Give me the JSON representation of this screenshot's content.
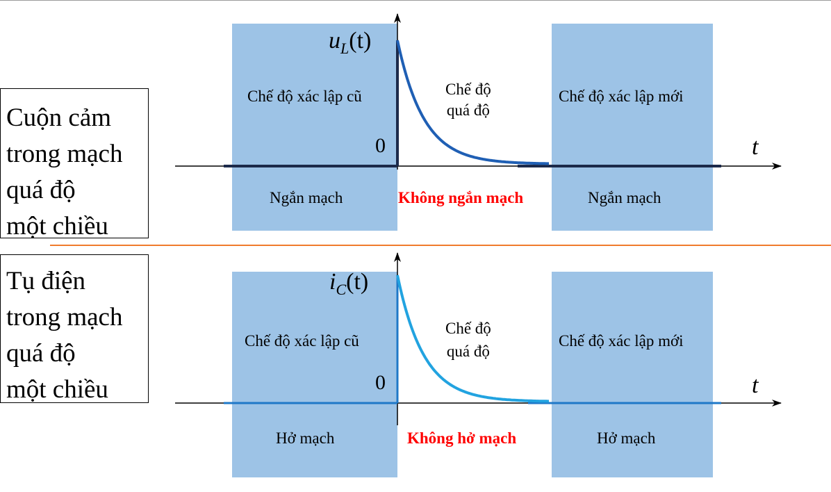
{
  "panels": [
    {
      "side_label": "Cuộn cảm\ntrong mạch\nquá độ\nmột chiều",
      "signal_label": {
        "base": "u",
        "sub": "L",
        "arg": "(t)"
      },
      "old_state": "Chế độ xác lập cũ",
      "transient": "Chế độ\nquá độ",
      "new_state": "Chế độ xác lập mới",
      "zero": "0",
      "t_label": "t",
      "left_mode": "Ngắn mạch",
      "middle_mode": "Không ngắn mạch",
      "right_mode": "Ngắn mạch",
      "curve_color": "#1f5fb4"
    },
    {
      "side_label": "Tụ điện\ntrong mạch\nquá độ\nmột chiều",
      "signal_label": {
        "base": "i",
        "sub": "C",
        "arg": "(t)"
      },
      "old_state": "Chế độ xác lập cũ",
      "transient": "Chế độ\nquá độ",
      "new_state": "Chế độ xác lập mới",
      "zero": "0",
      "t_label": "t",
      "left_mode": "Hở mạch",
      "middle_mode": "Không hở mạch",
      "right_mode": "Hở mạch",
      "curve_color": "#22a3e0"
    }
  ],
  "colors": {
    "region": "#9dc3e6",
    "separator": "#f07b2c",
    "emphasis": "#ff0000"
  }
}
